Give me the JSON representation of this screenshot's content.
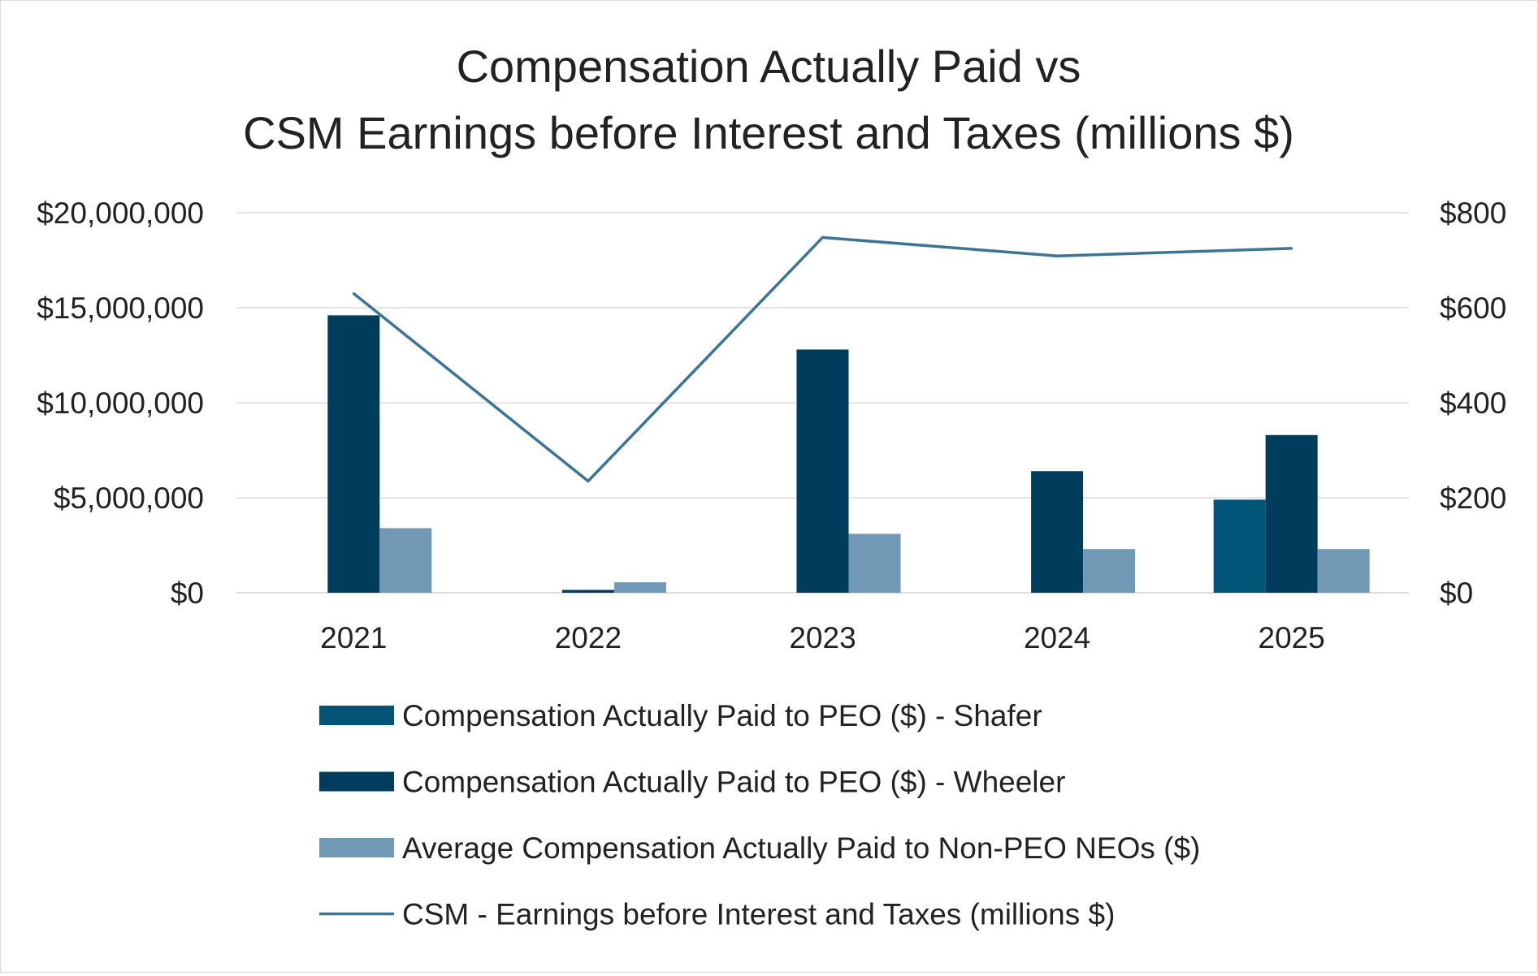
{
  "chart_data": {
    "type": "bar",
    "title": [
      "Compensation Actually Paid vs",
      "CSM Earnings before Interest and Taxes (millions $)"
    ],
    "categories": [
      "2021",
      "2022",
      "2023",
      "2024",
      "2025"
    ],
    "y_left": {
      "min": 0,
      "max": 20000000,
      "step": 5000000,
      "tick_labels": [
        "$0",
        "$5,000,000",
        "$10,000,000",
        "$15,000,000",
        "$20,000,000"
      ]
    },
    "y_right": {
      "min": 0,
      "max": 800,
      "step": 200,
      "tick_labels": [
        "$0",
        "$200",
        "$400",
        "$600",
        "$800"
      ]
    },
    "grid": true,
    "legend_position": "bottom",
    "series": [
      {
        "name": "Compensation Actually Paid to PEO ($) - Shafer",
        "type": "bar",
        "axis": "left",
        "color": "#005577",
        "values": [
          null,
          null,
          null,
          null,
          4900000
        ]
      },
      {
        "name": "Compensation Actually Paid to PEO ($) - Wheeler",
        "type": "bar",
        "axis": "left",
        "color": "#003D5C",
        "values": [
          14600000,
          150000,
          12800000,
          6400000,
          8300000
        ]
      },
      {
        "name": "Average Compensation Actually Paid to Non-PEO NEOs ($)",
        "type": "bar",
        "axis": "left",
        "color": "#7199B6",
        "values": [
          3400000,
          550000,
          3100000,
          2300000,
          2300000
        ]
      },
      {
        "name": "CSM - Earnings before Interest and Taxes (millions $)",
        "type": "line",
        "axis": "right",
        "color": "#3C7496",
        "values": [
          630,
          235,
          748,
          709,
          725
        ]
      }
    ]
  }
}
